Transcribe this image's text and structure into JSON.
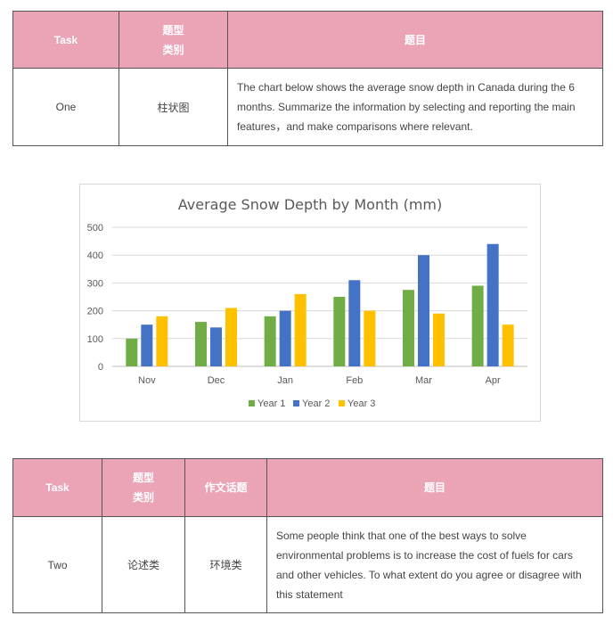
{
  "task1": {
    "headers": {
      "task": "Task",
      "type": "题型\n类别",
      "prompt": "题目"
    },
    "row": {
      "task": "One",
      "type": "柱状图",
      "prompt": "The chart below shows the average snow depth in Canada during the 6 months. Summarize the information by selecting and reporting the main features，and make comparisons where relevant."
    }
  },
  "chart_data": {
    "type": "bar",
    "title": "Average Snow Depth by Month (mm)",
    "categories": [
      "Nov",
      "Dec",
      "Jan",
      "Feb",
      "Mar",
      "Apr"
    ],
    "series": [
      {
        "name": "Year 1",
        "color": "#70ad47",
        "values": [
          100,
          160,
          180,
          250,
          275,
          290
        ]
      },
      {
        "name": "Year 2",
        "color": "#4472c4",
        "values": [
          150,
          140,
          200,
          310,
          400,
          440
        ]
      },
      {
        "name": "Year 3",
        "color": "#ffc000",
        "values": [
          180,
          210,
          260,
          200,
          190,
          150
        ]
      }
    ],
    "ylim": [
      0,
      500
    ],
    "yticks": [
      0,
      100,
      200,
      300,
      400,
      500
    ],
    "grid": true,
    "legend": "bottom"
  },
  "task2": {
    "headers": {
      "task": "Task",
      "type": "题型\n类别",
      "topic": "作文话题",
      "prompt": "题目"
    },
    "row": {
      "task": "Two",
      "type": "论述类",
      "topic": "环境类",
      "prompt": "Some people think that one of the best ways to solve environmental problems is to increase the cost of fuels for cars and other vehicles. To what extent do you agree or disagree with this statement"
    }
  }
}
